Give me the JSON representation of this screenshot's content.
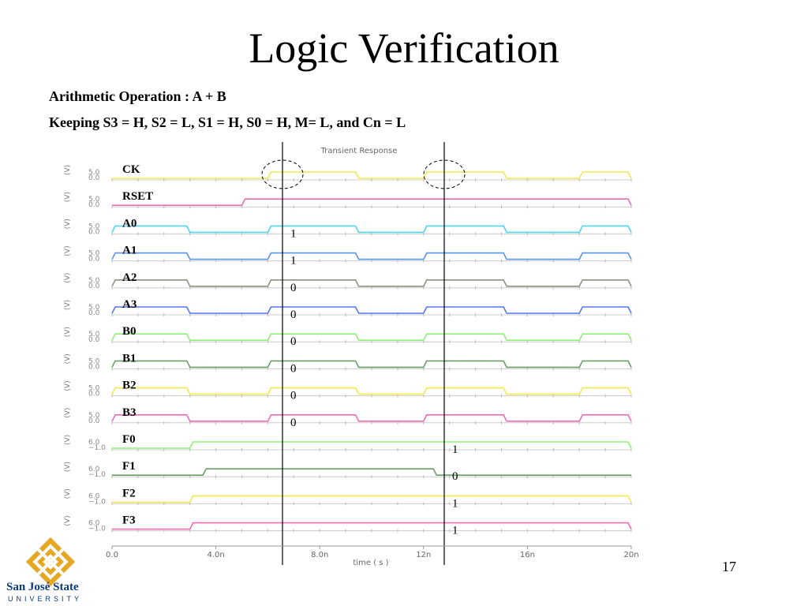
{
  "slide": {
    "title": "Logic Verification",
    "subtitle_1": "Arithmetic Operation : A + B",
    "subtitle_2": "Keeping S3 = H, S2 = L, S1 = H, S0 = H, M= L, and Cn = L",
    "page_number": "17"
  },
  "plot": {
    "title": "Transient Response",
    "xlabel": "time ( s )",
    "x_ticks": [
      "0.0",
      "4.0n",
      "8.0n",
      "12n",
      "16n",
      "20n"
    ],
    "signals": [
      {
        "name": "CK",
        "color": "#f2e94e",
        "hi": "5.0",
        "lo": "0.0",
        "value": ""
      },
      {
        "name": "RSET",
        "color": "#f06cb2",
        "hi": "5.0",
        "lo": "0.0",
        "value": ""
      },
      {
        "name": "A0",
        "color": "#4fd6f0",
        "hi": "5.0",
        "lo": "0.0",
        "value": "1"
      },
      {
        "name": "A1",
        "color": "#5b95e8",
        "hi": "5.0",
        "lo": "0.0",
        "value": "1"
      },
      {
        "name": "A2",
        "color": "#8f9080",
        "hi": "5.0",
        "lo": "0.0",
        "value": "0"
      },
      {
        "name": "A3",
        "color": "#5577ee",
        "hi": "5.0",
        "lo": "0.0",
        "value": "0"
      },
      {
        "name": "B0",
        "color": "#92ee7a",
        "hi": "5.0",
        "lo": "0.0",
        "value": "0"
      },
      {
        "name": "B1",
        "color": "#6c9e6a",
        "hi": "5.0",
        "lo": "0.0",
        "value": "0"
      },
      {
        "name": "B2",
        "color": "#f2e94e",
        "hi": "5.0",
        "lo": "0.0",
        "value": "0"
      },
      {
        "name": "B3",
        "color": "#f06cb2",
        "hi": "5.0",
        "lo": "0.0",
        "value": "0"
      },
      {
        "name": "F0",
        "color": "#92ee7a",
        "hi": "6.0",
        "lo": "−1.0",
        "value": "1"
      },
      {
        "name": "F1",
        "color": "#6c9e6a",
        "hi": "6.0",
        "lo": "−1.0",
        "value": "0"
      },
      {
        "name": "F2",
        "color": "#f2e94e",
        "hi": "6.0",
        "lo": "−1.0",
        "value": "1"
      },
      {
        "name": "F3",
        "color": "#f06cb2",
        "hi": "6.0",
        "lo": "−1.0",
        "value": "1"
      }
    ]
  },
  "logo": {
    "name": "San José State",
    "sub": "UNIVERSITY",
    "colors": {
      "gold": "#e5a823",
      "blue": "#0b3a79"
    }
  }
}
